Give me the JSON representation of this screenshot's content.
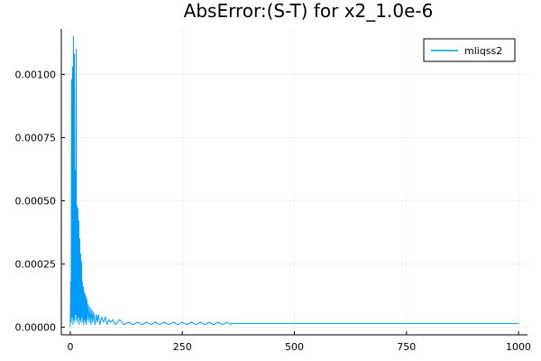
{
  "chart_data": {
    "type": "line",
    "title": "AbsError:(S-T) for x2_1.0e-6",
    "xlabel": "",
    "ylabel": "",
    "xlim": [
      -20,
      1020
    ],
    "ylim": [
      -3e-05,
      0.00118
    ],
    "x_ticks": [
      0,
      250,
      500,
      750,
      1000
    ],
    "x_tick_labels": [
      "0",
      "250",
      "500",
      "750",
      "1000"
    ],
    "y_ticks": [
      0.0,
      0.00025,
      0.0005,
      0.00075,
      0.001
    ],
    "y_tick_labels": [
      "0.00000",
      "0.00025",
      "0.00050",
      "0.00075",
      "0.00100"
    ],
    "grid": true,
    "legend_position": "top-right",
    "series": [
      {
        "name": "mliqss2",
        "color": "#009AFA",
        "x": [
          0,
          1,
          2,
          3,
          4,
          5,
          6,
          7,
          8,
          9,
          10,
          11,
          12,
          13,
          14,
          15,
          16,
          17,
          18,
          19,
          20,
          21,
          22,
          23,
          24,
          25,
          26,
          27,
          28,
          29,
          30,
          31,
          32,
          33,
          34,
          35,
          36,
          37,
          38,
          40,
          42,
          44,
          46,
          48,
          50,
          52,
          55,
          58,
          60,
          63,
          66,
          70,
          74,
          78,
          82,
          86,
          90,
          95,
          100,
          110,
          120,
          130,
          140,
          150,
          160,
          170,
          180,
          190,
          200,
          210,
          220,
          230,
          240,
          250,
          260,
          270,
          280,
          290,
          300,
          310,
          320,
          330,
          340,
          350,
          358,
          360,
          400,
          500,
          600,
          700,
          800,
          900,
          1000
        ],
        "y": [
          0.0,
          0.00018,
          2e-05,
          0.00098,
          4e-05,
          0.00103,
          1e-05,
          0.00115,
          3e-05,
          0.00108,
          2e-05,
          0.00062,
          5e-05,
          0.0011,
          3e-05,
          0.00048,
          2e-05,
          0.00047,
          4e-05,
          0.00042,
          1e-05,
          0.00035,
          3e-05,
          0.00029,
          2e-05,
          0.00026,
          4e-05,
          0.00018,
          2e-05,
          0.00016,
          1e-05,
          0.00014,
          3e-05,
          0.00013,
          2e-05,
          0.00012,
          1e-05,
          0.00011,
          3e-05,
          9e-05,
          2e-05,
          8e-05,
          1e-05,
          7e-05,
          2e-05,
          6e-05,
          1e-05,
          5e-05,
          2e-05,
          5e-05,
          1e-05,
          4e-05,
          2e-05,
          4e-05,
          1e-05,
          3e-05,
          2e-05,
          3e-05,
          1e-05,
          3e-05,
          1e-05,
          2e-05,
          1e-05,
          2e-05,
          1e-05,
          2e-05,
          1e-05,
          2e-05,
          1e-05,
          2e-05,
          1e-05,
          2e-05,
          1e-05,
          2e-05,
          1e-05,
          2e-05,
          1e-05,
          2e-05,
          1e-05,
          2e-05,
          1e-05,
          2e-05,
          1e-05,
          2e-05,
          1e-05,
          1.5e-05,
          1.5e-05,
          1.5e-05,
          1.5e-05,
          1.5e-05,
          1.5e-05,
          1.5e-05,
          1.5e-05
        ]
      }
    ]
  }
}
